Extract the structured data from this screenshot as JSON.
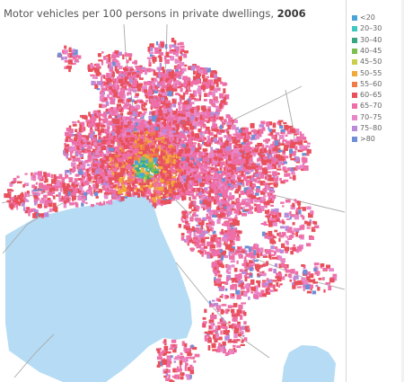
{
  "title": {
    "text": "Motor vehicles per 100 persons in private dwellings, ",
    "year": "2006"
  },
  "legend": {
    "items": [
      {
        "label": "<20",
        "color": "#4aa4d8"
      },
      {
        "label": "20–30",
        "color": "#3ec8c0"
      },
      {
        "label": "30–40",
        "color": "#3aa680"
      },
      {
        "label": "40–45",
        "color": "#7dbf4e"
      },
      {
        "label": "45–50",
        "color": "#c8cf4a"
      },
      {
        "label": "50–55",
        "color": "#f2a93b"
      },
      {
        "label": "55–60",
        "color": "#ef7d4a"
      },
      {
        "label": "60–65",
        "color": "#e8505b"
      },
      {
        "label": "65–70",
        "color": "#ee6fa8"
      },
      {
        "label": "70–75",
        "color": "#e887c8"
      },
      {
        "label": "75–80",
        "color": "#b98ad8"
      },
      {
        "label": ">80",
        "color": "#6f8ed6"
      }
    ]
  },
  "map": {
    "water_color": "#b5dcf4",
    "road_color": "#a9a9a9"
  }
}
